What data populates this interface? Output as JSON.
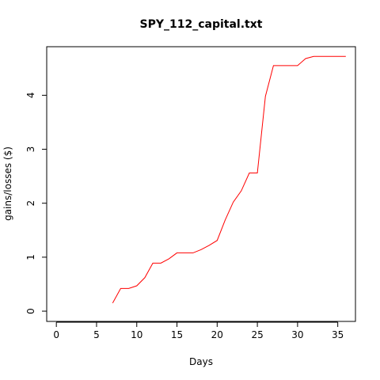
{
  "chart_data": {
    "type": "line",
    "title": "SPY_112_capital.txt",
    "xlabel": "Days",
    "ylabel": "gains/losses ($)",
    "xlim": [
      -1.2,
      37.2
    ],
    "ylim": [
      -0.19,
      4.9
    ],
    "xticks": [
      0,
      5,
      10,
      15,
      20,
      25,
      30,
      35
    ],
    "yticks": [
      0,
      1,
      2,
      3,
      4
    ],
    "grid": false,
    "legend": "none",
    "series": [
      {
        "color": "#ff0000",
        "x": [
          7,
          8,
          9,
          10,
          11,
          12,
          13,
          14,
          15,
          16,
          17,
          18,
          19,
          20,
          21,
          22,
          23,
          24,
          25,
          26,
          27,
          28,
          29,
          30,
          31,
          32,
          33,
          34,
          35,
          36
        ],
        "y": [
          0.15,
          0.42,
          0.42,
          0.47,
          0.62,
          0.89,
          0.89,
          0.97,
          1.08,
          1.08,
          1.08,
          1.14,
          1.22,
          1.31,
          1.69,
          2.02,
          2.23,
          2.56,
          2.56,
          3.98,
          4.55,
          4.55,
          4.55,
          4.55,
          4.68,
          4.72,
          4.72,
          4.72,
          4.72,
          4.72
        ]
      }
    ]
  }
}
